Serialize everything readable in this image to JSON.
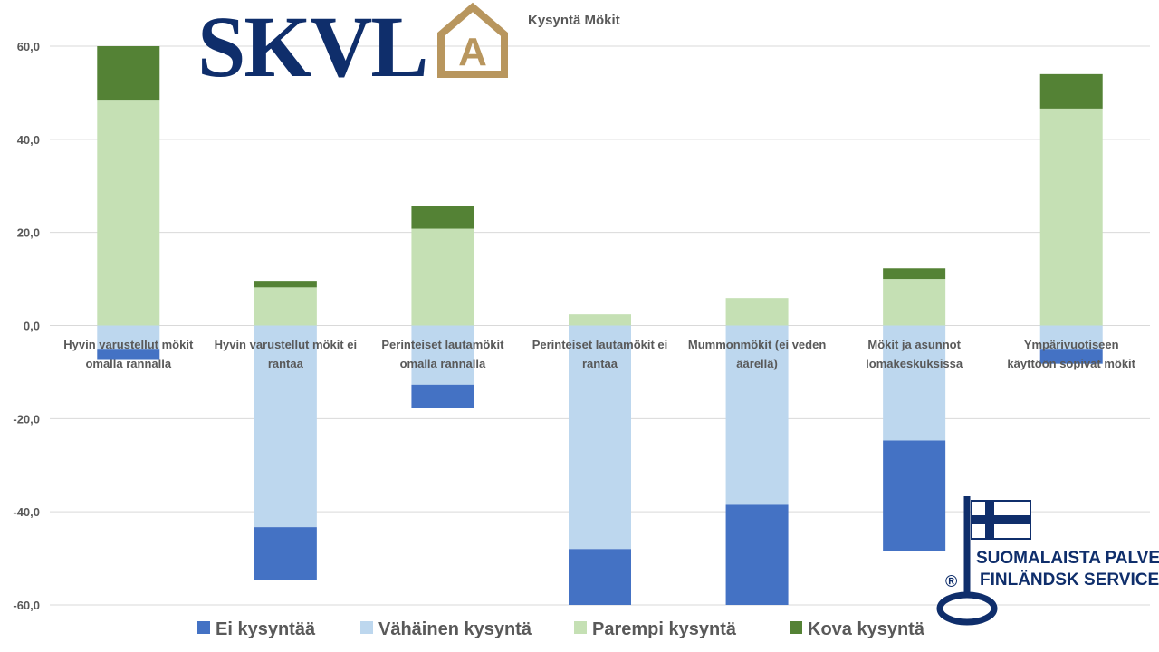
{
  "chart_data": {
    "type": "bar",
    "stacked": true,
    "title": "Kysyntä Mökit",
    "xlabel": "",
    "ylabel": "",
    "ylim": [
      -60,
      60
    ],
    "yticks": [
      60,
      40,
      20,
      0,
      -20,
      -40,
      -60
    ],
    "ytick_labels": [
      "60,0",
      "40,0",
      "20,0",
      "0,0",
      "-20,0",
      "-40,0",
      "-60,0"
    ],
    "grid": true,
    "legend_position": "bottom",
    "categories": [
      [
        "Hyvin varustellut mökit",
        "omalla rannalla"
      ],
      [
        "Hyvin varustellut mökit ei",
        "rantaa"
      ],
      [
        "Perinteiset lautamökit",
        "omalla rannalla"
      ],
      [
        "Perinteiset lautamökit ei",
        "rantaa"
      ],
      [
        "Mummonmökit (ei veden",
        "äärellä)"
      ],
      [
        "Mökit ja asunnot",
        "lomakeskuksissa"
      ],
      [
        "Ympärivuotiseen",
        "käyttöön sopivat mökit"
      ]
    ],
    "series": [
      {
        "name": "Ei kysyntää",
        "color": "#4472c4",
        "values": [
          -2.2,
          -11.3,
          -5.0,
          -12.0,
          -21.5,
          -23.8,
          -3.2
        ]
      },
      {
        "name": "Vähäinen kysyntä",
        "color": "#bdd7ee",
        "values": [
          -5.0,
          -43.3,
          -12.7,
          -48.0,
          -38.5,
          -24.7,
          -5.0
        ]
      },
      {
        "name": "Parempi kysyntä",
        "color": "#c5e0b4",
        "values": [
          48.5,
          8.2,
          20.8,
          2.4,
          5.9,
          10.0,
          46.6
        ]
      },
      {
        "name": "Kova kysyntä",
        "color": "#548235",
        "values": [
          11.5,
          1.4,
          4.8,
          0.0,
          0.0,
          2.3,
          7.4
        ]
      }
    ]
  },
  "logo": {
    "skvl_text": "SKVL",
    "a_letter": "A",
    "brand_line1": "SUOMALAISTA PALVELUA",
    "brand_line2": "FINLÄNDSK SERVICE",
    "registered": "®"
  },
  "colors": {
    "navy": "#0f2e6b",
    "gold": "#b8965e",
    "grid": "#d9d9d9",
    "text": "#595959"
  }
}
